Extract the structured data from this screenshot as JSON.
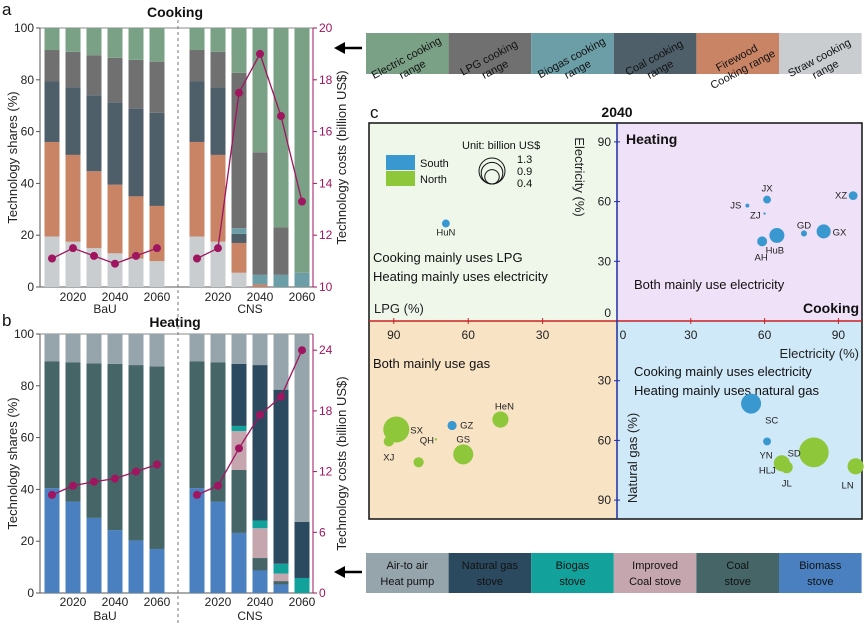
{
  "panel_labels": {
    "a": "a",
    "b": "b",
    "c": "c"
  },
  "common": {
    "left_axis_label": "Technology shares (%)",
    "right_axis_label": "Technology costs (billion US$)",
    "groups": [
      "BaU",
      "CNS"
    ],
    "years": [
      2010,
      2020,
      2030,
      2040,
      2050,
      2060
    ],
    "x_tick_labels": [
      "2020",
      "2040",
      "2060"
    ],
    "left_ticks": [
      "0",
      "20",
      "40",
      "60",
      "80",
      "100"
    ]
  },
  "chart_data": [
    {
      "type": "bar",
      "id": "cooking",
      "title": "Cooking",
      "stacked": true,
      "ylabel": "Technology shares (%)",
      "ylim": [
        0,
        100
      ],
      "y2label": "Technology costs (billion US$)",
      "y2lim": [
        10,
        20
      ],
      "y2_ticks": [
        "10",
        "12",
        "14",
        "16",
        "18",
        "20"
      ],
      "cost_color": "#a0155f",
      "series_order_bottom_to_top": [
        "straw",
        "firewood",
        "coal",
        "biogas",
        "lpg",
        "electric"
      ],
      "legend": [
        {
          "key": "electric",
          "label": [
            "Electric cooking",
            "range"
          ],
          "color": "#7aa086"
        },
        {
          "key": "lpg",
          "label": [
            "LPG cooking",
            "range"
          ],
          "color": "#707070"
        },
        {
          "key": "biogas",
          "label": [
            "Biogas cooking",
            "range"
          ],
          "color": "#6b9ea7"
        },
        {
          "key": "coal",
          "label": [
            "Coal cooking",
            "range"
          ],
          "color": "#4f5f6a"
        },
        {
          "key": "firewood",
          "label": [
            "Firewood",
            "Cooking range"
          ],
          "color": "#c98466"
        },
        {
          "key": "straw",
          "label": [
            "Straw cooking",
            "range"
          ],
          "color": "#c9cdd0"
        }
      ],
      "BaU": {
        "shares": [
          {
            "straw": 19.5,
            "firewood": 36.5,
            "coal": 23.5,
            "biogas": 0,
            "lpg": 12,
            "electric": 8.5
          },
          {
            "straw": 17.5,
            "firewood": 33.5,
            "coal": 26,
            "biogas": 0,
            "lpg": 13.8,
            "electric": 9.2
          },
          {
            "straw": 15,
            "firewood": 29.7,
            "coal": 29.3,
            "biogas": 0,
            "lpg": 15.5,
            "electric": 10.5
          },
          {
            "straw": 13,
            "firewood": 26.5,
            "coal": 31.8,
            "biogas": 0,
            "lpg": 17.2,
            "electric": 11.5
          },
          {
            "straw": 11,
            "firewood": 24,
            "coal": 34,
            "biogas": 0,
            "lpg": 18.7,
            "electric": 12.3
          },
          {
            "straw": 10,
            "firewood": 21.3,
            "coal": 36,
            "biogas": 0,
            "lpg": 19.7,
            "electric": 13
          }
        ],
        "costs": [
          11.1,
          11.5,
          11.2,
          10.9,
          11.2,
          11.5
        ]
      },
      "CNS": {
        "shares": [
          {
            "straw": 19.5,
            "firewood": 36.5,
            "coal": 23.5,
            "biogas": 0,
            "lpg": 12,
            "electric": 8.5
          },
          {
            "straw": 17.5,
            "firewood": 33.5,
            "coal": 26,
            "biogas": 0,
            "lpg": 13.8,
            "electric": 9.2
          },
          {
            "straw": 5.5,
            "firewood": 11.5,
            "coal": 3.5,
            "biogas": 2.2,
            "lpg": 60,
            "electric": 17.3
          },
          {
            "straw": 0,
            "firewood": 1,
            "coal": 0,
            "biogas": 3.7,
            "lpg": 47.3,
            "electric": 48
          },
          {
            "straw": 0,
            "firewood": 0,
            "coal": 0,
            "biogas": 4.7,
            "lpg": 18.3,
            "electric": 77
          },
          {
            "straw": 0,
            "firewood": 0,
            "coal": 0,
            "biogas": 5.5,
            "lpg": 0,
            "electric": 94.5
          }
        ],
        "costs": [
          11.1,
          11.5,
          17.5,
          19.0,
          16.6,
          13.3
        ]
      }
    },
    {
      "type": "bar",
      "id": "heating",
      "title": "Heating",
      "stacked": true,
      "ylabel": "Technology shares (%)",
      "ylim": [
        0,
        100
      ],
      "y2label": "Technology costs (billion US$)",
      "y2lim": [
        0,
        25.6
      ],
      "y2_ticks": [
        "0",
        "6",
        "12",
        "18",
        "24"
      ],
      "cost_color": "#a0155f",
      "series_order_bottom_to_top": [
        "biomass",
        "coal",
        "improved",
        "biogas",
        "gas",
        "heatpump"
      ],
      "legend": [
        {
          "key": "heatpump",
          "label": [
            "Air-to air",
            "Heat pump"
          ],
          "color": "#96a4ac"
        },
        {
          "key": "gas",
          "label": [
            "Natural gas",
            "stove"
          ],
          "color": "#2c4a5f"
        },
        {
          "key": "biogas",
          "label": [
            "Biogas",
            "stove"
          ],
          "color": "#12a29b"
        },
        {
          "key": "improved",
          "label": [
            "Improved",
            "Coal stove"
          ],
          "color": "#c5a6ae"
        },
        {
          "key": "coal",
          "label": [
            "Coal",
            "stove"
          ],
          "color": "#456567"
        },
        {
          "key": "biomass",
          "label": [
            "Biomass",
            "stove"
          ],
          "color": "#4a80c0"
        }
      ],
      "BaU": {
        "shares": [
          {
            "biomass": 40.5,
            "coal": 49,
            "improved": 0,
            "biogas": 0,
            "gas": 0,
            "heatpump": 10.5
          },
          {
            "biomass": 35.3,
            "coal": 53.7,
            "improved": 0,
            "biogas": 0,
            "gas": 0,
            "heatpump": 11
          },
          {
            "biomass": 29,
            "coal": 59.7,
            "improved": 0,
            "biogas": 0,
            "gas": 0,
            "heatpump": 11.3
          },
          {
            "biomass": 24.3,
            "coal": 64.2,
            "improved": 0,
            "biogas": 0,
            "gas": 0,
            "heatpump": 11.5
          },
          {
            "biomass": 20.3,
            "coal": 67.7,
            "improved": 0,
            "biogas": 0,
            "gas": 0,
            "heatpump": 12
          },
          {
            "biomass": 17,
            "coal": 70.5,
            "improved": 0,
            "biogas": 0,
            "gas": 0,
            "heatpump": 12.5
          }
        ],
        "costs": [
          9.7,
          10.6,
          11.0,
          11.3,
          12.0,
          12.7
        ]
      },
      "CNS": {
        "shares": [
          {
            "biomass": 40.5,
            "coal": 49,
            "improved": 0,
            "biogas": 0,
            "gas": 0,
            "heatpump": 10.5
          },
          {
            "biomass": 35.3,
            "coal": 53.7,
            "improved": 0,
            "biogas": 0,
            "gas": 0,
            "heatpump": 11
          },
          {
            "biomass": 23.2,
            "coal": 24.3,
            "improved": 15,
            "biogas": 2,
            "gas": 24,
            "heatpump": 11.5
          },
          {
            "biomass": 8.7,
            "coal": 4.8,
            "improved": 11.5,
            "biogas": 3,
            "gas": 60,
            "heatpump": 12
          },
          {
            "biomass": 3.3,
            "coal": 1.3,
            "improved": 2.9,
            "biogas": 3.8,
            "gas": 67.2,
            "heatpump": 21.5
          },
          {
            "biomass": 0,
            "coal": 0,
            "improved": 0,
            "biogas": 5.8,
            "gas": 21.7,
            "heatpump": 72.5
          }
        ],
        "costs": [
          9.7,
          10.6,
          14.3,
          17.6,
          19.4,
          24.0
        ]
      }
    },
    {
      "type": "scatter",
      "id": "quadrant",
      "title": "2040",
      "quadrant_labels": {
        "upper_left": [
          "Cooking mainly uses LPG",
          "Heating mainly uses electricity"
        ],
        "upper_right": [
          "Both mainly use electricity"
        ],
        "lower_left": [
          "Both mainly use gas"
        ],
        "lower_right": [
          "Cooking mainly uses electricity",
          "Heating mainly uses natural gas"
        ]
      },
      "axis_labels": {
        "top": "Electricity (%)",
        "bottom": "Natural gas (%)",
        "left": "LPG (%)",
        "right": "Electricity (%)",
        "cooking": "Cooking",
        "heating": "Heating"
      },
      "x_ticks_left": [
        "90",
        "60",
        "30"
      ],
      "x_ticks_right": [
        "0",
        "30",
        "60",
        "90"
      ],
      "y_ticks_top": [
        "90",
        "60",
        "30",
        "0"
      ],
      "y_ticks_bottom": [
        "30",
        "60",
        "90"
      ],
      "legend": {
        "regions": [
          {
            "label": "South",
            "color": "#3a98d0"
          },
          {
            "label": "North",
            "color": "#8ec73a"
          }
        ],
        "size_title": "Unit: billion US$",
        "size_values": [
          "1.3",
          "0.9",
          "0.4"
        ]
      },
      "colors": {
        "ul": "#eef7ea",
        "ur": "#efe1f7",
        "ll": "#f8e3c5",
        "lr": "#cfe9f8",
        "x_axis": "#cc2222",
        "y_axis": "#1f2fa8"
      },
      "points": [
        {
          "name": "HuN",
          "region": "South",
          "cooking_fuel": "LPG",
          "cooking": 69,
          "heating_fuel": "Electricity",
          "heating": 49,
          "cost": 0.12
        },
        {
          "name": "JX",
          "region": "South",
          "cooking_fuel": "Electricity",
          "cooking": 61,
          "heating_fuel": "Electricity",
          "heating": 61,
          "cost": 0.12
        },
        {
          "name": "JS",
          "region": "South",
          "cooking_fuel": "Electricity",
          "cooking": 53,
          "heating_fuel": "Electricity",
          "heating": 58,
          "cost": 0.03
        },
        {
          "name": "ZJ",
          "region": "South",
          "cooking_fuel": "Electricity",
          "cooking": 60,
          "heating_fuel": "Electricity",
          "heating": 54,
          "cost": 0.01
        },
        {
          "name": "XZ",
          "region": "South",
          "cooking_fuel": "Electricity",
          "cooking": 96,
          "heating_fuel": "Electricity",
          "heating": 63,
          "cost": 0.15
        },
        {
          "name": "GD",
          "region": "South",
          "cooking_fuel": "Electricity",
          "cooking": 76,
          "heating_fuel": "Electricity",
          "heating": 44,
          "cost": 0.07
        },
        {
          "name": "GX",
          "region": "South",
          "cooking_fuel": "Electricity",
          "cooking": 84,
          "heating_fuel": "Electricity",
          "heating": 45,
          "cost": 0.38
        },
        {
          "name": "HuB",
          "region": "South",
          "cooking_fuel": "Electricity",
          "cooking": 65,
          "heating_fuel": "Electricity",
          "heating": 43,
          "cost": 0.43
        },
        {
          "name": "AH",
          "region": "South",
          "cooking_fuel": "Electricity",
          "cooking": 59,
          "heating_fuel": "Electricity",
          "heating": 40,
          "cost": 0.19
        },
        {
          "name": "SC",
          "region": "South",
          "cooking_fuel": "Electricity",
          "cooking": 54.5,
          "heating_fuel": "Natural gas",
          "heating": 41.5,
          "cost": 0.77
        },
        {
          "name": "YN",
          "region": "South",
          "cooking_fuel": "Electricity",
          "cooking": 61,
          "heating_fuel": "Natural gas",
          "heating": 60.5,
          "cost": 0.12
        },
        {
          "name": "SD",
          "region": "North",
          "cooking_fuel": "Electricity",
          "cooking": 80,
          "heating_fuel": "Natural gas",
          "heating": 66,
          "cost": 1.7
        },
        {
          "name": "HLJ",
          "region": "North",
          "cooking_fuel": "Electricity",
          "cooking": 67,
          "heating_fuel": "Natural gas",
          "heating": 71.5,
          "cost": 0.5
        },
        {
          "name": "JL",
          "region": "North",
          "cooking_fuel": "Electricity",
          "cooking": 69,
          "heating_fuel": "Natural gas",
          "heating": 73.5,
          "cost": 0.28
        },
        {
          "name": "LN",
          "region": "North",
          "cooking_fuel": "Electricity",
          "cooking": 97,
          "heating_fuel": "Natural gas",
          "heating": 73,
          "cost": 0.5
        },
        {
          "name": "SX",
          "region": "North",
          "cooking_fuel": "LPG",
          "cooking": 89,
          "heating_fuel": "Natural gas",
          "heating": 54.5,
          "cost": 1.3
        },
        {
          "name": "XJ",
          "region": "North",
          "cooking_fuel": "LPG",
          "cooking": 92,
          "heating_fuel": "Natural gas",
          "heating": 60.5,
          "cost": 0.2
        },
        {
          "name": "QH",
          "region": "North",
          "cooking_fuel": "LPG",
          "cooking": 73,
          "heating_fuel": "Natural gas",
          "heating": 59.5,
          "cost": 0.01
        },
        {
          "name": "GS",
          "region": "North",
          "cooking_fuel": "LPG",
          "cooking": 62,
          "heating_fuel": "Natural gas",
          "heating": 67,
          "cost": 0.77
        },
        {
          "name": "GZ",
          "region": "South",
          "cooking_fuel": "LPG",
          "cooking": 66.5,
          "heating_fuel": "Natural gas",
          "heating": 52.5,
          "cost": 0.16
        },
        {
          "name": "HeN",
          "region": "North",
          "cooking_fuel": "LPG",
          "cooking": 47,
          "heating_fuel": "Natural gas",
          "heating": 49.5,
          "cost": 0.5
        },
        {
          "name": "",
          "region": "North",
          "cooking_fuel": "LPG",
          "cooking": 80,
          "heating_fuel": "Natural gas",
          "heating": 71,
          "cost": 0.2
        }
      ]
    }
  ]
}
